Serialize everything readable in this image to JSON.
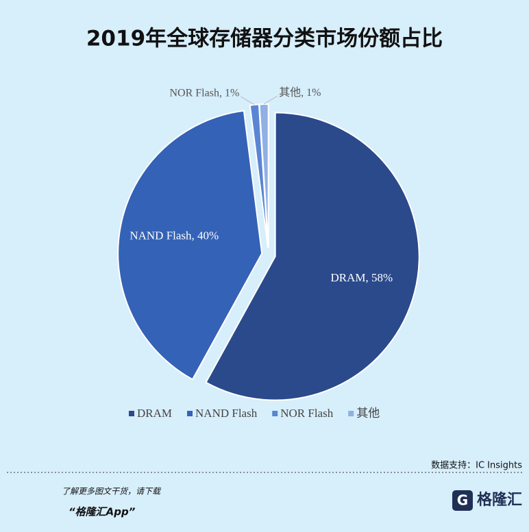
{
  "chart_data": {
    "type": "pie",
    "title": "2019年全球存储器分类市场份额占比",
    "categories": [
      "DRAM",
      "NAND Flash",
      "NOR Flash",
      "其他"
    ],
    "values": [
      58,
      40,
      1,
      1
    ],
    "value_labels": [
      "DRAM, 58%",
      "NAND Flash, 40%",
      "NOR Flash, 1%",
      "其他, 1%"
    ],
    "colors": [
      "#2b4a8c",
      "#3462b6",
      "#5a85d4",
      "#8fb0e4"
    ],
    "legend": "bottom"
  },
  "source": "数据支持：IC Insights",
  "footer": {
    "prompt": "了解更多图文干货，请下载",
    "app": "“格隆汇App”",
    "logo": "格隆汇"
  }
}
